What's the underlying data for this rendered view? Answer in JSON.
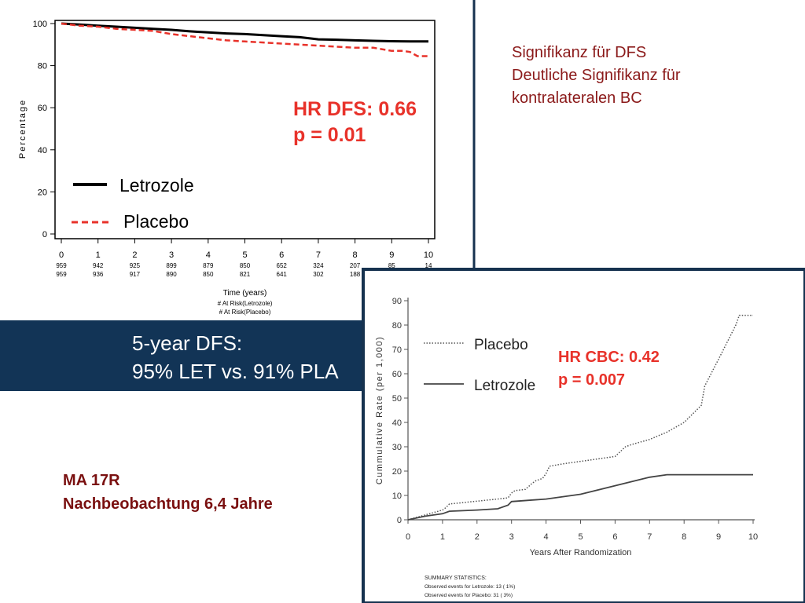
{
  "colors": {
    "navy": "#123456",
    "red": "#e8322a",
    "darkred": "#8b1a1a",
    "frame": "#16324f"
  },
  "notes": {
    "right": [
      "Signifikanz für DFS",
      "Deutliche Signifikanz für",
      "kontralateralen BC"
    ],
    "left": [
      "MA 17R",
      "Nachbeobachtung 6,4 Jahre"
    ]
  },
  "banner": {
    "lines": [
      "5-year DFS:",
      "95% LET vs. 91% PLA"
    ]
  },
  "chart_data": [
    {
      "type": "line",
      "title": "",
      "xlabel": "Time (years)",
      "ylabel": "Percentage",
      "xlim": [
        0,
        10
      ],
      "ylim": [
        0,
        100
      ],
      "xticks": [
        "0",
        "1",
        "2",
        "3",
        "4",
        "5",
        "6",
        "7",
        "8",
        "9",
        "10"
      ],
      "yticks": [
        "0",
        "20",
        "40",
        "60",
        "80",
        "100"
      ],
      "legend": [
        "Letrozole",
        "Placebo"
      ],
      "annotation": [
        "HR DFS: 0.66",
        "p = 0.01"
      ],
      "risk_labels": [
        "# At Risk(Letrozole)",
        "# At Risk(Placebo)"
      ],
      "at_risk": {
        "letrozole": [
          "959",
          "942",
          "925",
          "899",
          "879",
          "850",
          "652",
          "324",
          "207",
          "85",
          "14"
        ],
        "placebo": [
          "959",
          "936",
          "917",
          "890",
          "850",
          "821",
          "641",
          "302",
          "188",
          "",
          ""
        ]
      },
      "series": [
        {
          "name": "Letrozole",
          "style": "solid",
          "color": "#000000",
          "x": [
            0,
            0.5,
            1,
            1.5,
            2,
            2.5,
            3,
            3.5,
            4,
            4.5,
            5,
            5.5,
            6,
            6.5,
            7,
            7.5,
            8,
            8.5,
            9,
            9.5,
            10
          ],
          "y": [
            100,
            99.5,
            99,
            98.5,
            98,
            97.5,
            97,
            96.3,
            95.8,
            95.3,
            95,
            94.5,
            94,
            93.5,
            92.5,
            92.3,
            92,
            91.8,
            91.6,
            91.5,
            91.5
          ]
        },
        {
          "name": "Placebo",
          "style": "dashed",
          "color": "#e8322a",
          "x": [
            0,
            0.5,
            1,
            1.5,
            2,
            2.5,
            3,
            3.5,
            4,
            4.5,
            5,
            5.5,
            6,
            6.5,
            7,
            7.5,
            8,
            8.5,
            9,
            9.3,
            9.5,
            9.7,
            10
          ],
          "y": [
            100,
            99,
            98.5,
            97.5,
            97,
            96.5,
            95,
            94,
            93,
            92,
            91.5,
            91,
            90.5,
            90,
            89.5,
            89,
            88.5,
            88.5,
            87,
            87,
            86.5,
            84.5,
            84.5
          ]
        }
      ]
    },
    {
      "type": "line",
      "title": "",
      "xlabel": "Years After Randomization",
      "ylabel": "Cummulative Rate (per 1,000)",
      "xlim": [
        0,
        10
      ],
      "ylim": [
        0,
        90
      ],
      "xticks": [
        "0",
        "1",
        "2",
        "3",
        "4",
        "5",
        "6",
        "7",
        "8",
        "9",
        "10"
      ],
      "yticks": [
        "0",
        "10",
        "20",
        "30",
        "40",
        "50",
        "60",
        "70",
        "80",
        "90"
      ],
      "legend": [
        "Placebo",
        "Letrozole"
      ],
      "annotation": [
        "HR CBC: 0.42",
        "p = 0.007"
      ],
      "summary": [
        "SUMMARY STATISTICS:",
        "Observed events for Letrozole: 13 (  1%)",
        "Observed events for Placebo: 31 (  3%)"
      ],
      "series": [
        {
          "name": "Placebo",
          "style": "dotted",
          "color": "#555555",
          "x": [
            0,
            0.5,
            1,
            1.1,
            1.2,
            2.6,
            2.9,
            3.0,
            3.1,
            3.4,
            3.6,
            3.7,
            3.9,
            4.0,
            4.1,
            4.5,
            5,
            5.5,
            6,
            6.3,
            6.5,
            7,
            7.5,
            8,
            8.5,
            8.6,
            9,
            9.5,
            9.6,
            10
          ],
          "y": [
            0,
            2,
            4,
            5,
            6.5,
            8.5,
            9,
            11,
            12,
            12.5,
            15,
            16,
            17,
            19,
            22,
            23,
            24,
            25,
            26,
            30,
            31,
            33,
            36,
            40,
            47,
            55,
            66,
            80,
            84,
            84
          ]
        },
        {
          "name": "Letrozole",
          "style": "solid",
          "color": "#444444",
          "x": [
            0,
            0.5,
            1,
            1.2,
            2,
            2.6,
            2.9,
            3.0,
            3.5,
            4,
            5,
            6,
            7,
            7.5,
            8,
            9,
            10
          ],
          "y": [
            0,
            1.5,
            2.5,
            3.5,
            4,
            4.5,
            6,
            7.5,
            8,
            8.5,
            10.5,
            14,
            17.5,
            18.5,
            18.5,
            18.5,
            18.5
          ]
        }
      ]
    }
  ]
}
